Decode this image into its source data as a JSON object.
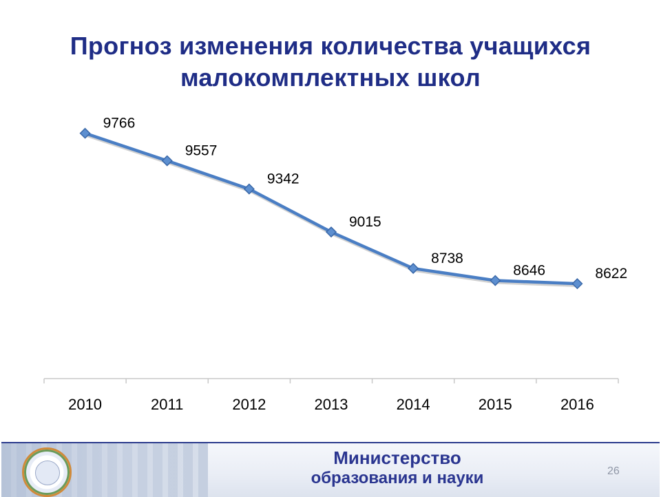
{
  "title_lines": [
    "Прогноз изменения количества учащихся",
    "малокомплектных школ"
  ],
  "chart_data": {
    "type": "line",
    "title": "Прогноз изменения количества учащихся малокомплектных школ",
    "categories": [
      "2010",
      "2011",
      "2012",
      "2013",
      "2014",
      "2015",
      "2016"
    ],
    "series": [
      {
        "values": [
          9766,
          9557,
          9342,
          9015,
          8738,
          8646,
          8622
        ]
      }
    ],
    "data_labels": [
      "9766",
      "9557",
      "9342",
      "9015",
      "8738",
      "8646",
      "8622"
    ],
    "ylim": [
      7900,
      9900
    ],
    "grid": false,
    "line_color": "#4a7ec4",
    "marker": "diamond"
  },
  "footer": {
    "ministry_line1": "Министерство",
    "ministry_line2": "образования и науки",
    "page_number": "26"
  },
  "colors": {
    "title": "#1f2d86",
    "ministry": "#2a3590",
    "axis": "#c8c8c8"
  }
}
